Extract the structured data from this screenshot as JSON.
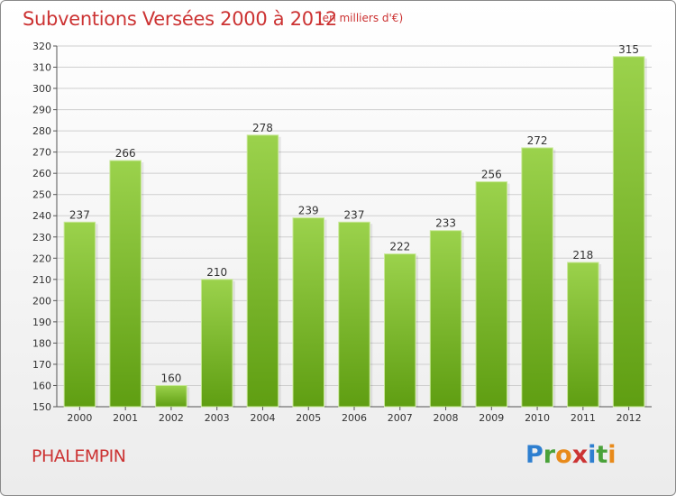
{
  "header": {
    "title": "Subventions Versées 2000 à 2012",
    "unit_note": "(en milliers d'€)"
  },
  "footer": {
    "commune": "PHALEMPIN",
    "logo_text": "Proxiti",
    "logo_letters": [
      {
        "ch": "P",
        "color": "#2e7fd0"
      },
      {
        "ch": "r",
        "color": "#4aa23a"
      },
      {
        "ch": "o",
        "color": "#e88a1a"
      },
      {
        "ch": "x",
        "color": "#cc3333"
      },
      {
        "ch": "i",
        "color": "#2e7fd0"
      },
      {
        "ch": "t",
        "color": "#4aa23a"
      },
      {
        "ch": "i",
        "color": "#e88a1a"
      }
    ]
  },
  "colors": {
    "title": "#cc3333",
    "bar_top": "#9bd24c",
    "bar_bottom": "#5f9e12",
    "grid": "#cfcfcf"
  },
  "chart_data": {
    "type": "bar",
    "categories": [
      "2000",
      "2001",
      "2002",
      "2003",
      "2004",
      "2005",
      "2006",
      "2007",
      "2008",
      "2009",
      "2010",
      "2011",
      "2012"
    ],
    "values": [
      237,
      266,
      160,
      210,
      278,
      239,
      237,
      222,
      233,
      256,
      272,
      218,
      315
    ],
    "ylim": [
      150,
      320
    ],
    "ytick_step": 10,
    "grid": true,
    "title": "Subventions Versées 2000 à 2012",
    "ylabel": "",
    "xlabel": ""
  }
}
